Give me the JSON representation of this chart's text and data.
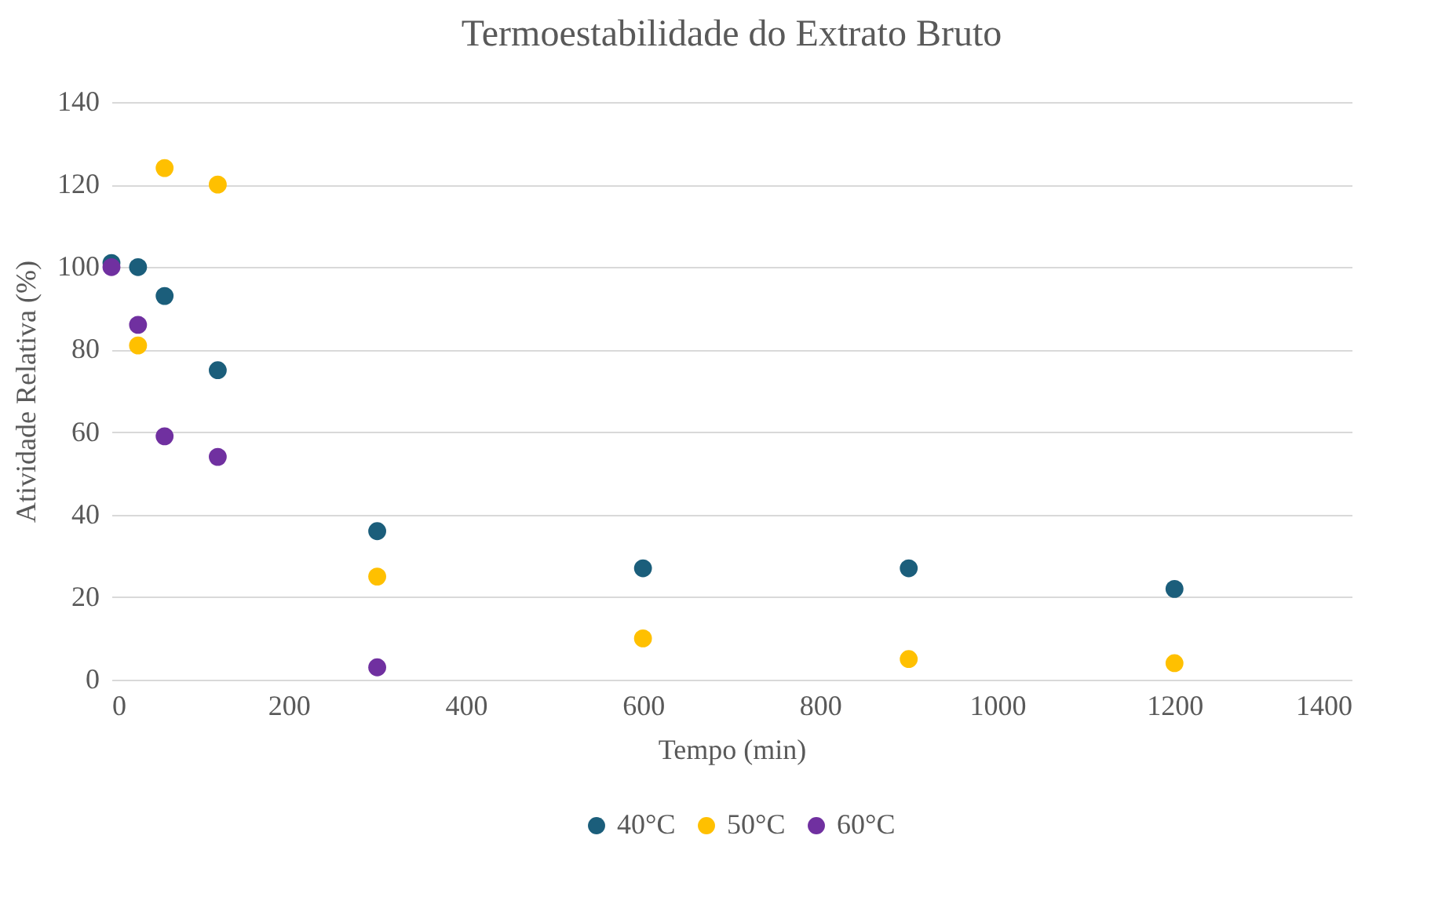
{
  "chart_data": {
    "type": "scatter",
    "title": "Termoestabilidade do Extrato Bruto",
    "xlabel": "Tempo (min)",
    "ylabel": "Atividade Relativa (%)",
    "xlim": [
      0,
      1400
    ],
    "xticks": [
      0,
      200,
      400,
      600,
      800,
      1000,
      1200,
      1400
    ],
    "ylim": [
      0,
      140
    ],
    "yticks": [
      0,
      20,
      40,
      60,
      80,
      100,
      120,
      140
    ],
    "grid": "y",
    "legend": "bottom",
    "marker": "circle",
    "series": [
      {
        "name": "40°C",
        "color": "#1b5e7b",
        "x": [
          0,
          30,
          60,
          120,
          300,
          600,
          900,
          1200
        ],
        "values": [
          101,
          100,
          93,
          75,
          36,
          27,
          27,
          22
        ]
      },
      {
        "name": "50°C",
        "color": "#ffc000",
        "x": [
          30,
          60,
          120,
          300,
          600,
          900,
          1200
        ],
        "values": [
          81,
          124,
          120,
          25,
          10,
          5,
          4
        ]
      },
      {
        "name": "60°C",
        "color": "#7030a0",
        "x": [
          0,
          30,
          60,
          120,
          300
        ],
        "values": [
          100,
          86,
          59,
          54,
          3
        ]
      }
    ]
  }
}
